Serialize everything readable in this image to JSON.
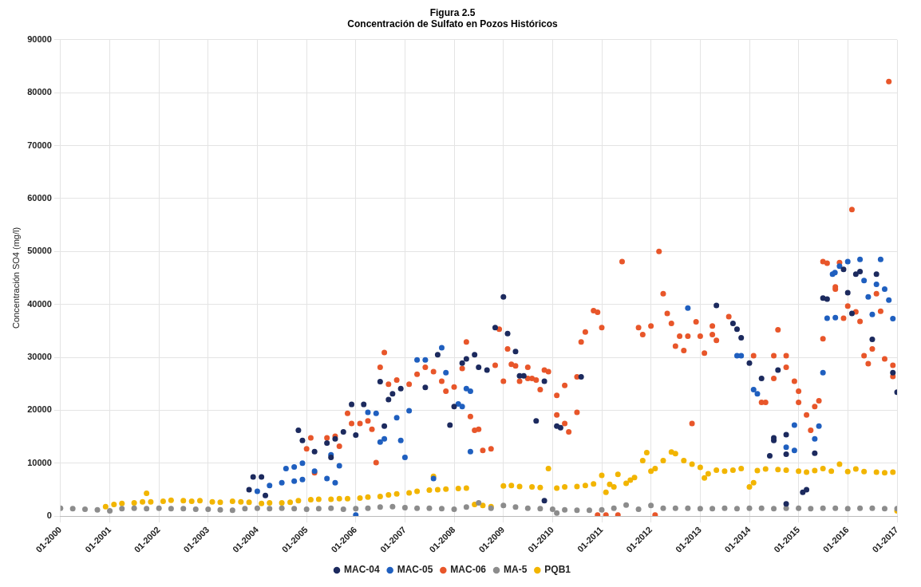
{
  "chart_data": {
    "type": "scatter",
    "title": "Figura 2.5",
    "subtitle": "Concentración de Sulfato en Pozos Históricos",
    "ylabel": "Concentración SO4 (mg/l)",
    "xlim": [
      "2000-01",
      "2017-01"
    ],
    "xticks": [
      {
        "value": "2000-01",
        "label": "01-2000"
      },
      {
        "value": "2001-01",
        "label": "01-2001"
      },
      {
        "value": "2002-01",
        "label": "01-2002"
      },
      {
        "value": "2003-01",
        "label": "01-2003"
      },
      {
        "value": "2004-01",
        "label": "01-2004"
      },
      {
        "value": "2005-01",
        "label": "01-2005"
      },
      {
        "value": "2006-01",
        "label": "01-2006"
      },
      {
        "value": "2007-01",
        "label": "01-2007"
      },
      {
        "value": "2008-01",
        "label": "01-2008"
      },
      {
        "value": "2009-01",
        "label": "01-2009"
      },
      {
        "value": "2010-01",
        "label": "01-2010"
      },
      {
        "value": "2011-01",
        "label": "01-2011"
      },
      {
        "value": "2012-01",
        "label": "01-2012"
      },
      {
        "value": "2013-01",
        "label": "01-2013"
      },
      {
        "value": "2014-01",
        "label": "01-2014"
      },
      {
        "value": "2015-01",
        "label": "01-2015"
      },
      {
        "value": "2016-01",
        "label": "01-2016"
      },
      {
        "value": "2017-01",
        "label": "01-2017"
      }
    ],
    "ylim": [
      0,
      90000
    ],
    "yticks": [
      0,
      10000,
      20000,
      30000,
      40000,
      50000,
      60000,
      70000,
      80000,
      90000
    ],
    "grid": true,
    "legend": "bottom",
    "marker": "circle",
    "series": [
      {
        "name": "MAC-04",
        "color": "#1c2a5e",
        "x": [
          "2003-11",
          "2003-12",
          "2004-02",
          "2004-03",
          "2004-11",
          "2004-12",
          "2005-03",
          "2005-06",
          "2005-07",
          "2005-08",
          "2005-10",
          "2005-12",
          "2006-01",
          "2006-03",
          "2006-07",
          "2006-08",
          "2006-09",
          "2006-10",
          "2006-12",
          "2007-06",
          "2007-09",
          "2007-12",
          "2008-01",
          "2008-03",
          "2008-04",
          "2008-06",
          "2008-07",
          "2008-09",
          "2008-11",
          "2009-01",
          "2009-02",
          "2009-04",
          "2009-05",
          "2009-06",
          "2009-09",
          "2009-11",
          "2009-11",
          "2010-02",
          "2010-03",
          "2010-08",
          "2013-05",
          "2013-09",
          "2013-10",
          "2013-11",
          "2014-01",
          "2014-04",
          "2014-06",
          "2014-07",
          "2014-07",
          "2014-08",
          "2014-10",
          "2014-10",
          "2014-10",
          "2015-02",
          "2015-03",
          "2015-05",
          "2015-07",
          "2015-08",
          "2015-12",
          "2016-01",
          "2016-02",
          "2016-03",
          "2016-04",
          "2016-07",
          "2016-08",
          "2016-12",
          "2017-01"
        ],
        "values": [
          5000,
          7400,
          7400,
          3900,
          16200,
          14300,
          12200,
          13800,
          11100,
          14600,
          15900,
          21100,
          15300,
          21100,
          25400,
          17000,
          22000,
          23100,
          24100,
          24300,
          30500,
          17200,
          20700,
          28900,
          29700,
          30500,
          28100,
          27600,
          35600,
          41400,
          34500,
          31100,
          26500,
          26500,
          18000,
          25500,
          2900,
          17000,
          16700,
          26300,
          39800,
          36400,
          35300,
          33700,
          28900,
          26000,
          11400,
          14300,
          14800,
          27600,
          15400,
          11700,
          2300,
          4500,
          5000,
          11900,
          41200,
          41000,
          46600,
          42200,
          38300,
          45700,
          46200,
          33400,
          45700,
          27100,
          23400
        ]
      },
      {
        "name": "MAC-05",
        "color": "#1f5fbf",
        "x": [
          "2004-01",
          "2004-04",
          "2004-07",
          "2004-08",
          "2004-10",
          "2004-10",
          "2004-12",
          "2004-12",
          "2005-03",
          "2005-06",
          "2005-07",
          "2005-08",
          "2005-09",
          "2006-01",
          "2006-04",
          "2006-06",
          "2006-07",
          "2006-08",
          "2006-11",
          "2006-12",
          "2007-01",
          "2007-02",
          "2007-04",
          "2007-06",
          "2007-08",
          "2007-10",
          "2007-11",
          "2008-02",
          "2008-03",
          "2008-04",
          "2008-05",
          "2008-05",
          "2012-10",
          "2013-10",
          "2013-11",
          "2014-02",
          "2014-03",
          "2014-10",
          "2014-12",
          "2014-12",
          "2015-05",
          "2015-06",
          "2015-07",
          "2015-08",
          "2015-09-10",
          "2015-09-28",
          "2015-10",
          "2015-11",
          "2016-01",
          "2016-04",
          "2016-05",
          "2016-06",
          "2016-07",
          "2016-08",
          "2016-09",
          "2016-10",
          "2016-11",
          "2016-12"
        ],
        "values": [
          4700,
          5800,
          6300,
          9000,
          6600,
          9300,
          10000,
          6900,
          8500,
          7100,
          11600,
          6300,
          9500,
          200,
          19600,
          19400,
          14000,
          14600,
          18600,
          14300,
          11100,
          19900,
          29500,
          29500,
          7100,
          31800,
          27100,
          21200,
          20700,
          24100,
          23600,
          12200,
          39300,
          30300,
          30300,
          23900,
          23100,
          13000,
          12400,
          17200,
          14600,
          17000,
          27100,
          37400,
          45700,
          46000,
          37500,
          47200,
          48100,
          48500,
          44500,
          41400,
          38100,
          43800,
          48500,
          42900,
          40800,
          37300
        ]
      },
      {
        "name": "MAC-06",
        "color": "#e8562a",
        "x": [
          "2005-01",
          "2005-02",
          "2005-03",
          "2005-06",
          "2005-08",
          "2005-09",
          "2005-11",
          "2005-12",
          "2006-02",
          "2006-04",
          "2006-05",
          "2006-06",
          "2006-07",
          "2006-08",
          "2006-09",
          "2006-11",
          "2007-02",
          "2007-04",
          "2007-06",
          "2007-08",
          "2007-10",
          "2007-11",
          "2008-01",
          "2008-03",
          "2008-04",
          "2008-05",
          "2008-06",
          "2008-07",
          "2008-08",
          "2008-10",
          "2008-11",
          "2008-12",
          "2009-01",
          "2009-02",
          "2009-03",
          "2009-04",
          "2009-05",
          "2009-07",
          "2009-07",
          "2009-08",
          "2009-09",
          "2009-10",
          "2009-11",
          "2009-12",
          "2010-02",
          "2010-02",
          "2010-04",
          "2010-04",
          "2010-05",
          "2010-07",
          "2010-07",
          "2010-08",
          "2010-09",
          "2010-11",
          "2010-12",
          "2010-12",
          "2011-01",
          "2011-02",
          "2011-05",
          "2011-06",
          "2011-10",
          "2011-11",
          "2012-01",
          "2012-02",
          "2012-03",
          "2012-04",
          "2012-05",
          "2012-06",
          "2012-07",
          "2012-08",
          "2012-09",
          "2012-10",
          "2012-11",
          "2012-12",
          "2013-01",
          "2013-02",
          "2013-04",
          "2013-04",
          "2013-05",
          "2013-08",
          "2014-02",
          "2014-04",
          "2014-05",
          "2014-07",
          "2014-07",
          "2014-08",
          "2014-10",
          "2014-10",
          "2014-12",
          "2015-01",
          "2015-01",
          "2015-03",
          "2015-04",
          "2015-05",
          "2015-06",
          "2015-07",
          "2015-07",
          "2015-08",
          "2015-10",
          "2015-10",
          "2015-11",
          "2015-12",
          "2016-01",
          "2016-02",
          "2016-03",
          "2016-04",
          "2016-05",
          "2016-06",
          "2016-07",
          "2016-08",
          "2016-09",
          "2016-10",
          "2016-11",
          "2016-12",
          "2016-12"
        ],
        "values": [
          12700,
          14800,
          8200,
          14800,
          15100,
          13200,
          19400,
          17500,
          17500,
          18000,
          16400,
          10100,
          28100,
          30900,
          24900,
          25700,
          24900,
          26800,
          28100,
          27300,
          25500,
          23600,
          24400,
          27900,
          32900,
          18800,
          16200,
          16400,
          12400,
          12700,
          28500,
          35300,
          25500,
          31600,
          28700,
          28400,
          25500,
          28100,
          26000,
          26000,
          25700,
          23900,
          27600,
          27300,
          22800,
          19100,
          17500,
          24700,
          15900,
          26300,
          19600,
          32900,
          34800,
          38800,
          38500,
          200,
          35600,
          200,
          200,
          48100,
          35600,
          34300,
          35900,
          200,
          50000,
          42000,
          38300,
          36400,
          32100,
          34000,
          31300,
          34000,
          17500,
          36700,
          34000,
          30800,
          35900,
          34300,
          33200,
          37700,
          30300,
          21500,
          21500,
          30300,
          26000,
          35200,
          30300,
          28100,
          25500,
          23600,
          21500,
          19100,
          16200,
          20700,
          21800,
          33500,
          48100,
          47800,
          42900,
          43300,
          47900,
          37400,
          39700,
          57900,
          38600,
          36800,
          30300,
          28800,
          31600,
          42000,
          38700,
          29700,
          82100,
          28500,
          26400
        ]
      },
      {
        "name": "MA-5",
        "color": "#8c8c8c",
        "x": [
          "2000-01",
          "2000-04",
          "2000-07",
          "2000-10",
          "2001-01",
          "2001-04",
          "2001-07",
          "2001-10",
          "2002-01",
          "2002-04",
          "2002-07",
          "2002-10",
          "2003-01",
          "2003-04",
          "2003-07",
          "2003-10",
          "2004-01",
          "2004-04",
          "2004-07",
          "2004-10",
          "2005-01",
          "2005-04",
          "2005-07",
          "2005-10",
          "2006-01",
          "2006-04",
          "2006-07",
          "2006-10",
          "2007-01",
          "2007-04",
          "2007-07",
          "2007-10",
          "2008-01",
          "2008-04",
          "2008-07",
          "2008-10",
          "2009-01",
          "2009-04",
          "2009-07",
          "2009-10",
          "2010-01",
          "2010-02",
          "2010-04",
          "2010-07",
          "2010-10",
          "2011-01",
          "2011-04",
          "2011-07",
          "2011-10",
          "2012-01",
          "2012-04",
          "2012-07",
          "2012-10",
          "2013-01",
          "2013-04",
          "2013-07",
          "2013-10",
          "2014-01",
          "2014-04",
          "2014-07",
          "2014-10",
          "2015-01",
          "2015-04",
          "2015-07",
          "2015-10",
          "2016-01",
          "2016-04",
          "2016-07",
          "2016-10",
          "2017-01"
        ],
        "values": [
          1500,
          1400,
          1300,
          1200,
          1000,
          1400,
          1500,
          1400,
          1500,
          1400,
          1400,
          1300,
          1300,
          1200,
          1100,
          1400,
          1500,
          1400,
          1500,
          1400,
          1300,
          1400,
          1500,
          1300,
          1400,
          1500,
          1700,
          1800,
          1600,
          1500,
          1500,
          1400,
          1300,
          1700,
          2500,
          1500,
          2000,
          1700,
          1500,
          1400,
          1300,
          600,
          1200,
          1100,
          1100,
          1200,
          1500,
          2100,
          1300,
          2000,
          1500,
          1500,
          1500,
          1400,
          1400,
          1500,
          1400,
          1500,
          1500,
          1400,
          1500,
          1500,
          1400,
          1500,
          1500,
          1400,
          1500,
          1500,
          1400,
          1400
        ]
      },
      {
        "name": "PQB1",
        "color": "#f2b500",
        "x": [
          "2000-12",
          "2001-02",
          "2001-04",
          "2001-07",
          "2001-09",
          "2001-10",
          "2001-11",
          "2002-02",
          "2002-04",
          "2002-07",
          "2002-09",
          "2002-11",
          "2003-02",
          "2003-04",
          "2003-07",
          "2003-09",
          "2003-11",
          "2004-02",
          "2004-04",
          "2004-07",
          "2004-09",
          "2004-11",
          "2005-02",
          "2005-04",
          "2005-07",
          "2005-09",
          "2005-11",
          "2006-02",
          "2006-04",
          "2006-07",
          "2006-09",
          "2006-11",
          "2007-02",
          "2007-04",
          "2007-07",
          "2007-08",
          "2007-09",
          "2007-11",
          "2008-02",
          "2008-04",
          "2008-06",
          "2008-08",
          "2008-10",
          "2009-01",
          "2009-03",
          "2009-05",
          "2009-08",
          "2009-10",
          "2009-12",
          "2010-02",
          "2010-04",
          "2010-07",
          "2010-09",
          "2010-11",
          "2011-01",
          "2011-02",
          "2011-03",
          "2011-04",
          "2011-05",
          "2011-07",
          "2011-08",
          "2011-09",
          "2011-11",
          "2011-12",
          "2012-01",
          "2012-02",
          "2012-04",
          "2012-06",
          "2012-07",
          "2012-09",
          "2012-11",
          "2013-01",
          "2013-02",
          "2013-03",
          "2013-05",
          "2013-07",
          "2013-09",
          "2013-11",
          "2014-01",
          "2014-02",
          "2014-03",
          "2014-05",
          "2014-08",
          "2014-10",
          "2015-01",
          "2015-03",
          "2015-05",
          "2015-07",
          "2015-09",
          "2015-11",
          "2016-01",
          "2016-03",
          "2016-05",
          "2016-08",
          "2016-10",
          "2016-12",
          "2017-01"
        ],
        "values": [
          1800,
          2200,
          2400,
          2500,
          2700,
          4300,
          2700,
          2800,
          3000,
          2900,
          2800,
          2900,
          2700,
          2600,
          2800,
          2700,
          2600,
          2400,
          2500,
          2500,
          2600,
          2900,
          3100,
          3200,
          3200,
          3300,
          3300,
          3400,
          3600,
          3700,
          4000,
          4200,
          4400,
          4700,
          4900,
          7500,
          5000,
          5100,
          5200,
          5300,
          2200,
          2000,
          1800,
          5700,
          5800,
          5600,
          5500,
          5400,
          9000,
          5300,
          5500,
          5600,
          5800,
          6100,
          7700,
          4500,
          6000,
          5500,
          7900,
          6200,
          6800,
          7300,
          10500,
          12000,
          8500,
          9000,
          10500,
          12100,
          11800,
          10500,
          9800,
          9200,
          7200,
          8000,
          8700,
          8500,
          8700,
          9000,
          5500,
          6300,
          8600,
          8900,
          8800,
          8700,
          8500,
          8300,
          8600,
          9000,
          8500,
          9800,
          8400,
          8900,
          8400,
          8300,
          8200,
          8300,
          1000
        ]
      }
    ]
  }
}
